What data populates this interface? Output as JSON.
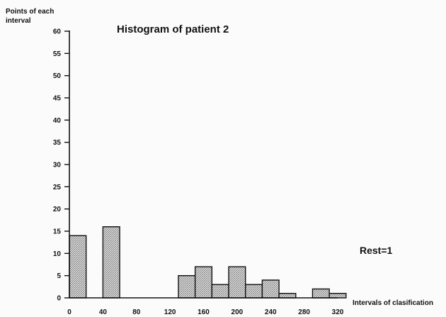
{
  "chart_data": {
    "type": "bar",
    "title": "Histogram of patient 2",
    "ylabel": [
      "Points of each",
      "interval"
    ],
    "xlabel": "Intervals of clasification",
    "annotation": "Rest=1",
    "xlim": [
      0,
      320
    ],
    "ylim": [
      0,
      60
    ],
    "x_ticks": [
      0,
      40,
      80,
      120,
      160,
      200,
      240,
      280,
      320
    ],
    "y_ticks": [
      0,
      5,
      10,
      15,
      20,
      25,
      30,
      35,
      40,
      45,
      50,
      55,
      60
    ],
    "bin_width": 20,
    "bins": [
      {
        "start": 0,
        "value": 14
      },
      {
        "start": 40,
        "value": 16
      },
      {
        "start": 130,
        "value": 5
      },
      {
        "start": 150,
        "value": 7
      },
      {
        "start": 170,
        "value": 3
      },
      {
        "start": 190,
        "value": 7
      },
      {
        "start": 210,
        "value": 3
      },
      {
        "start": 230,
        "value": 4
      },
      {
        "start": 250,
        "value": 1
      },
      {
        "start": 290,
        "value": 2
      },
      {
        "start": 310,
        "value": 1
      }
    ],
    "grid": false,
    "bar_fill": "#b8b8b8",
    "axis_color": "#111111"
  }
}
